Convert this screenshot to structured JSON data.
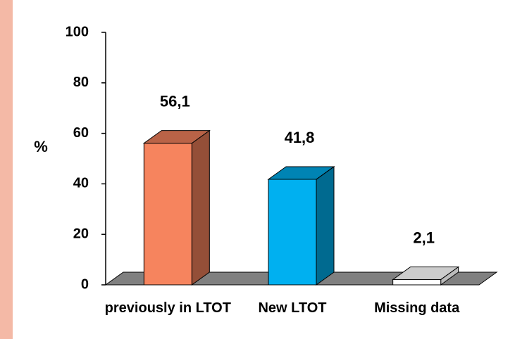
{
  "chart_data": {
    "type": "bar3d",
    "ylabel": "%",
    "categories": [
      "previously in LTOT",
      "New LTOT",
      "Missing data"
    ],
    "values": [
      56.1,
      41.8,
      2.1
    ],
    "value_labels": [
      "56,1",
      "41,8",
      "2,1"
    ],
    "colors": [
      "#f6845e",
      "#00b0f0",
      "#ffffff"
    ],
    "ylim": [
      0,
      100
    ],
    "yticks": [
      0,
      20,
      40,
      60,
      80,
      100
    ]
  }
}
